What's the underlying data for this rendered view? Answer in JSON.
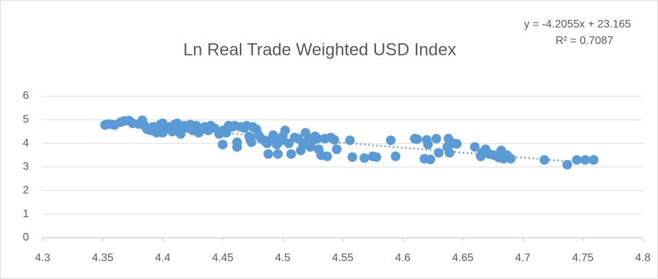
{
  "chart_data": {
    "type": "scatter",
    "title": "Ln Real Trade Weighted USD Index",
    "color": "#5b9bd5",
    "grid": true,
    "trendline": {
      "slope": -4.2055,
      "intercept": 23.165,
      "equation": "y = -4.2055x + 23.165",
      "r_squared": 0.7087,
      "r_squared_label": "R² = 0.7087"
    },
    "xlim": [
      4.3,
      4.8
    ],
    "xticks": [
      4.3,
      4.35,
      4.4,
      4.45,
      4.5,
      4.55,
      4.6,
      4.65,
      4.7,
      4.75,
      4.8
    ],
    "ylim": [
      0,
      6
    ],
    "yticks": [
      0,
      1,
      2,
      3,
      4,
      5,
      6
    ],
    "x": [
      4.352,
      4.355,
      4.358,
      4.36,
      4.365,
      4.368,
      4.372,
      4.375,
      4.38,
      4.383,
      4.385,
      4.387,
      4.39,
      4.392,
      4.395,
      4.398,
      4.4,
      4.4,
      4.402,
      4.405,
      4.408,
      4.41,
      4.412,
      4.413,
      4.415,
      4.418,
      4.42,
      4.423,
      4.425,
      4.428,
      4.43,
      4.433,
      4.435,
      4.438,
      4.44,
      4.443,
      4.447,
      4.45,
      4.45,
      4.453,
      4.455,
      4.458,
      4.46,
      4.462,
      4.462,
      4.465,
      4.468,
      4.47,
      4.472,
      4.473,
      4.474,
      4.475,
      4.478,
      4.48,
      4.482,
      4.485,
      4.487,
      4.488,
      4.49,
      4.492,
      4.494,
      4.495,
      4.496,
      4.498,
      4.5,
      4.502,
      4.505,
      4.507,
      4.51,
      4.513,
      4.515,
      4.517,
      4.519,
      4.52,
      4.522,
      4.523,
      4.525,
      4.527,
      4.529,
      4.53,
      4.532,
      4.535,
      4.537,
      4.54,
      4.543,
      4.545,
      4.556,
      4.558,
      4.568,
      4.575,
      4.578,
      4.59,
      4.594,
      4.61,
      4.612,
      4.618,
      4.62,
      4.621,
      4.623,
      4.628,
      4.63,
      4.637,
      4.638,
      4.639,
      4.642,
      4.645,
      4.66,
      4.665,
      4.666,
      4.669,
      4.672,
      4.676,
      4.68,
      4.682,
      4.684,
      4.687,
      4.69,
      4.718,
      4.737,
      4.745,
      4.752,
      4.759
    ],
    "values": [
      4.78,
      4.82,
      4.8,
      4.78,
      4.9,
      4.95,
      4.97,
      4.85,
      4.82,
      4.98,
      4.75,
      4.6,
      4.55,
      4.7,
      4.45,
      4.8,
      4.85,
      4.45,
      4.6,
      4.7,
      4.5,
      4.8,
      4.85,
      4.6,
      4.4,
      4.75,
      4.65,
      4.8,
      4.55,
      4.75,
      4.45,
      4.6,
      4.7,
      4.55,
      4.75,
      4.65,
      4.4,
      4.55,
      3.95,
      4.45,
      4.75,
      4.7,
      4.75,
      4.05,
      3.85,
      4.7,
      4.65,
      4.75,
      4.3,
      4.15,
      4.05,
      4.7,
      4.6,
      4.35,
      4.2,
      4.1,
      4.0,
      3.55,
      4.15,
      4.35,
      4.2,
      3.95,
      3.55,
      4.1,
      4.3,
      4.55,
      4.0,
      3.55,
      4.25,
      4.2,
      3.7,
      3.95,
      4.45,
      4.05,
      4.2,
      3.85,
      4.1,
      4.3,
      4.2,
      3.75,
      3.5,
      4.2,
      3.45,
      4.25,
      4.15,
      3.75,
      4.13,
      3.42,
      3.38,
      3.45,
      3.42,
      4.13,
      3.45,
      4.2,
      4.18,
      3.35,
      4.15,
      3.95,
      3.32,
      4.2,
      3.6,
      3.85,
      4.2,
      3.6,
      4.0,
      3.98,
      3.85,
      3.45,
      3.6,
      3.75,
      3.55,
      3.5,
      3.4,
      3.7,
      3.35,
      3.5,
      3.35,
      3.3,
      3.1,
      3.3,
      3.3,
      3.3
    ]
  }
}
